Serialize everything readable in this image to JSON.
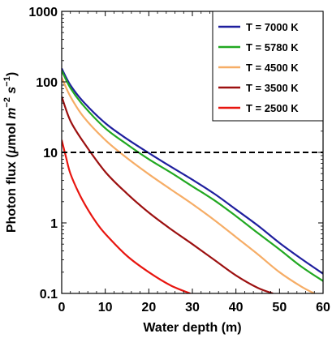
{
  "chart_data": {
    "type": "line",
    "xlabel": "Water depth (m)",
    "ylabel": "Photon flux (μmol m⁻² s⁻¹)",
    "ylabel_parts": {
      "prefix": "Photon flux (",
      "mu": "μ",
      "mol": "mol ",
      "m": "m",
      "m_exp": "−2",
      "s": " s",
      "s_exp": "−1",
      "suffix": ")"
    },
    "xlim": [
      0,
      60
    ],
    "ylim": [
      0.1,
      1000
    ],
    "y_scale": "log",
    "x_ticks": [
      0,
      10,
      20,
      30,
      40,
      50,
      60
    ],
    "x_tick_labels": [
      "0",
      "10",
      "20",
      "30",
      "40",
      "50",
      "60"
    ],
    "y_ticks": [
      0.1,
      1,
      10,
      100,
      1000
    ],
    "y_tick_labels": [
      "0.1",
      "1",
      "10",
      "100",
      "1000"
    ],
    "legend_position": "top-right",
    "grid": false,
    "reference_line": {
      "y": 10,
      "style": "dashed",
      "color": "#000000"
    },
    "series": [
      {
        "name": "T = 7000 K",
        "color": "#1f1f9e",
        "x": [
          0,
          2,
          5,
          10,
          15,
          20,
          25,
          30,
          35,
          40,
          45,
          50,
          55,
          60
        ],
        "y": [
          155,
          90,
          52,
          26,
          15.5,
          9.8,
          6.3,
          4.1,
          2.6,
          1.55,
          0.92,
          0.52,
          0.31,
          0.19
        ]
      },
      {
        "name": "T = 5780 K",
        "color": "#21a821",
        "x": [
          0,
          2,
          5,
          10,
          15,
          20,
          25,
          30,
          35,
          40,
          45,
          50,
          55,
          60
        ],
        "y": [
          145,
          82,
          46,
          22,
          13,
          8,
          5.2,
          3.3,
          2.1,
          1.25,
          0.72,
          0.42,
          0.24,
          0.15
        ]
      },
      {
        "name": "T = 4500 K",
        "color": "#f6ad66",
        "x": [
          0,
          2,
          5,
          10,
          15,
          20,
          25,
          30,
          35,
          40,
          45,
          50,
          55,
          58
        ],
        "y": [
          115,
          62,
          32,
          15,
          8.3,
          4.9,
          3.0,
          1.85,
          1.1,
          0.63,
          0.36,
          0.2,
          0.125,
          0.1
        ]
      },
      {
        "name": "T = 3500 K",
        "color": "#9c1010",
        "x": [
          0,
          2,
          5,
          10,
          15,
          20,
          25,
          30,
          35,
          40,
          45,
          48.5
        ],
        "y": [
          62,
          28,
          14,
          5.3,
          2.6,
          1.4,
          0.82,
          0.5,
          0.3,
          0.18,
          0.12,
          0.1
        ]
      },
      {
        "name": "T = 2500 K",
        "color": "#e8150f",
        "x": [
          0,
          1,
          2,
          4,
          6,
          8,
          10,
          15,
          20,
          25,
          29.5
        ],
        "y": [
          15,
          8.5,
          5.0,
          2.6,
          1.55,
          1.0,
          0.7,
          0.34,
          0.2,
          0.13,
          0.1
        ]
      }
    ]
  }
}
